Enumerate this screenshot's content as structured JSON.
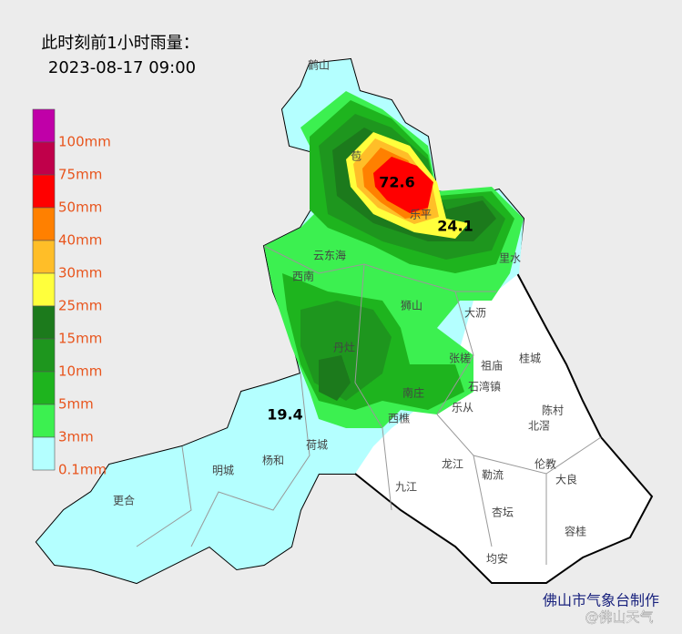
{
  "header": {
    "title": "此时刻前1小时雨量：",
    "time": "2023-08-17 09:00"
  },
  "legend": [
    {
      "label": "100mm",
      "color": "#c000a8"
    },
    {
      "label": "75mm",
      "color": "#c0004a"
    },
    {
      "label": "50mm",
      "color": "#ff0000"
    },
    {
      "label": "40mm",
      "color": "#ff8000"
    },
    {
      "label": "30mm",
      "color": "#ffbe28"
    },
    {
      "label": "25mm",
      "color": "#ffff3c"
    },
    {
      "label": "15mm",
      "color": "#1c7a1c"
    },
    {
      "label": "10mm",
      "color": "#1e961e"
    },
    {
      "label": "5mm",
      "color": "#1eb41e"
    },
    {
      "label": "3mm",
      "color": "#3cf050"
    },
    {
      "label": "0.1mm",
      "color": "#b4ffff"
    }
  ],
  "places": [
    "鹤山",
    "苞",
    "乐平",
    "云东海",
    "西南",
    "里水",
    "狮山",
    "大沥",
    "丹灶",
    "桂城",
    "张槎",
    "祖庙",
    "石湾镇",
    "南庄",
    "乐从",
    "陈村",
    "西樵",
    "北滘",
    "伦教",
    "大良",
    "荷城",
    "杨和",
    "明城",
    "更合",
    "九江",
    "龙江",
    "勒流",
    "杏坛",
    "容桂",
    "均安"
  ],
  "rain_values": [
    72.6,
    24.1,
    19.4
  ],
  "footer": {
    "credit": "佛山市气象台制作",
    "watermark": "@佛山天气"
  }
}
